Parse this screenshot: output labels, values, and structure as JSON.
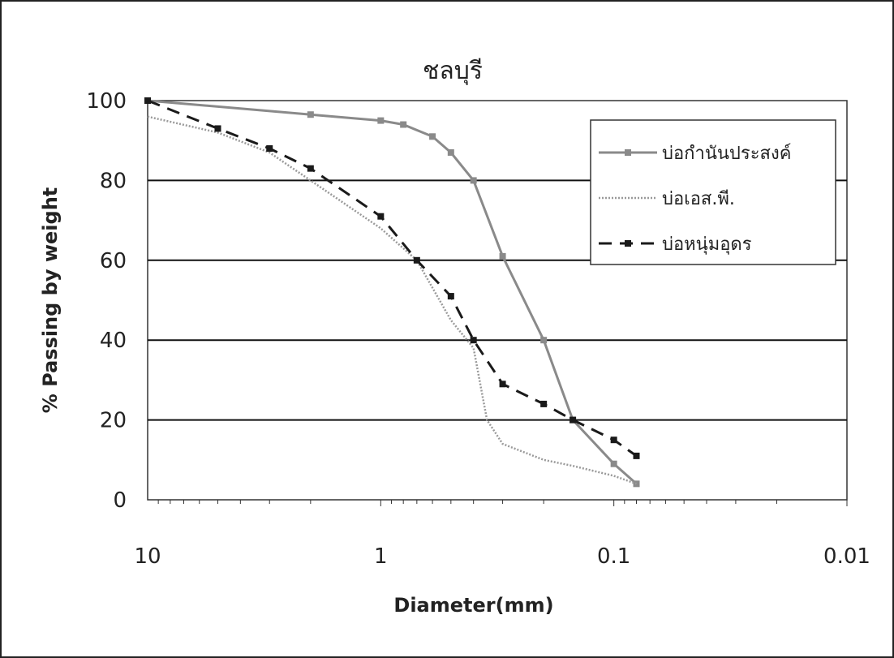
{
  "chart_data": {
    "type": "line",
    "title": "ชลบุรี",
    "xlabel": "Diameter(mm)",
    "ylabel": "% Passing by weight",
    "x_scale": "log",
    "x_reversed": true,
    "xlim": [
      10,
      0.01
    ],
    "ylim": [
      0,
      100
    ],
    "x_tick_labels": [
      "10",
      "1",
      "0.1",
      "0.01"
    ],
    "x_tick_values": [
      10,
      1,
      0.1,
      0.01
    ],
    "y_ticks": [
      0,
      20,
      40,
      60,
      80,
      100
    ],
    "grid": "horizontal",
    "legend_position": "top-right",
    "series": [
      {
        "name": "บ่อกำนันประสงค์",
        "color": "#8a8a8a",
        "style": "solid-square-markers",
        "points": [
          [
            10,
            100
          ],
          [
            2,
            96.5
          ],
          [
            1,
            95
          ],
          [
            0.8,
            94
          ],
          [
            0.6,
            91
          ],
          [
            0.5,
            87
          ],
          [
            0.4,
            80
          ],
          [
            0.3,
            61
          ],
          [
            0.2,
            40
          ],
          [
            0.15,
            20
          ],
          [
            0.1,
            9
          ],
          [
            0.08,
            4
          ]
        ]
      },
      {
        "name": "บ่อเอส.พี.",
        "color": "#9a9a9a",
        "style": "dotted",
        "points": [
          [
            10,
            96
          ],
          [
            5,
            92
          ],
          [
            3,
            87
          ],
          [
            2,
            80
          ],
          [
            1,
            68
          ],
          [
            0.7,
            60
          ],
          [
            0.5,
            45
          ],
          [
            0.4,
            38
          ],
          [
            0.35,
            20
          ],
          [
            0.3,
            14
          ],
          [
            0.2,
            10
          ],
          [
            0.15,
            8.5
          ],
          [
            0.1,
            6
          ],
          [
            0.08,
            4
          ]
        ]
      },
      {
        "name": "บ่อหนุ่มอุดร",
        "color": "#1a1a1a",
        "style": "dash-square-markers",
        "points": [
          [
            10,
            100
          ],
          [
            5,
            93
          ],
          [
            3,
            88
          ],
          [
            2,
            83
          ],
          [
            1,
            71
          ],
          [
            0.7,
            60
          ],
          [
            0.5,
            51
          ],
          [
            0.4,
            40
          ],
          [
            0.3,
            29
          ],
          [
            0.2,
            24
          ],
          [
            0.15,
            20
          ],
          [
            0.1,
            15
          ],
          [
            0.08,
            11
          ]
        ]
      }
    ]
  }
}
